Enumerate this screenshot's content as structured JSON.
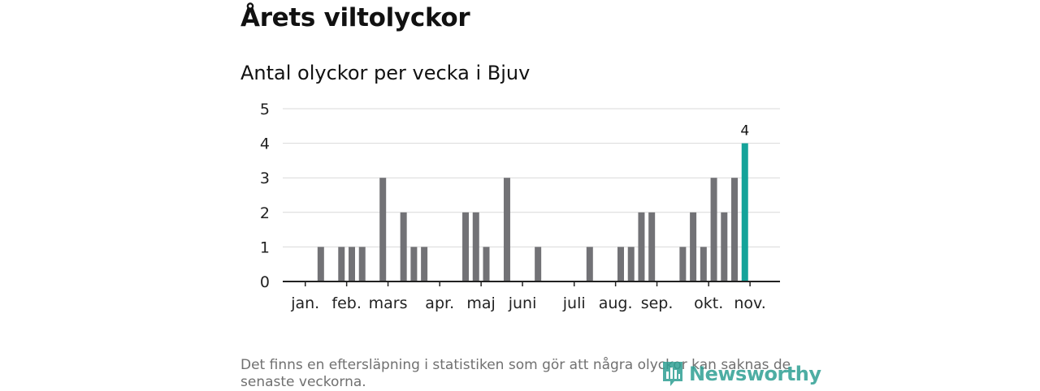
{
  "header": {
    "title": "Årets viltolyckor",
    "subtitle": "Antal olyckor per vecka i Bjuv"
  },
  "chart_data": {
    "type": "bar",
    "title": "",
    "xlabel": "",
    "ylabel": "",
    "ylim": [
      0,
      5
    ],
    "yticks": [
      0,
      1,
      2,
      3,
      4,
      5
    ],
    "grid": true,
    "weeks": [
      1,
      2,
      3,
      4,
      5,
      6,
      7,
      8,
      9,
      10,
      11,
      12,
      13,
      14,
      15,
      16,
      17,
      18,
      19,
      20,
      21,
      22,
      23,
      24,
      25,
      26,
      27,
      28,
      29,
      30,
      31,
      32,
      33,
      34,
      35,
      36,
      37,
      38,
      39,
      40,
      41,
      42,
      43,
      44,
      45,
      46,
      47,
      48
    ],
    "values": [
      0,
      0,
      0,
      1,
      0,
      1,
      1,
      1,
      0,
      3,
      0,
      2,
      1,
      1,
      0,
      0,
      0,
      2,
      2,
      1,
      0,
      3,
      0,
      0,
      1,
      0,
      0,
      0,
      0,
      1,
      0,
      0,
      1,
      1,
      2,
      2,
      0,
      0,
      1,
      2,
      1,
      3,
      2,
      3,
      4,
      0,
      0,
      0
    ],
    "month_labels": [
      {
        "label": "jan.",
        "week": 2.5
      },
      {
        "label": "feb.",
        "week": 6.5
      },
      {
        "label": "mars",
        "week": 10.5
      },
      {
        "label": "apr.",
        "week": 15.5
      },
      {
        "label": "maj",
        "week": 19.5
      },
      {
        "label": "juni",
        "week": 23.5
      },
      {
        "label": "juli",
        "week": 28.5
      },
      {
        "label": "aug.",
        "week": 32.5
      },
      {
        "label": "sep.",
        "week": 36.5
      },
      {
        "label": "okt.",
        "week": 41.5
      },
      {
        "label": "nov.",
        "week": 45.5
      }
    ],
    "highlight_index": 44,
    "highlight_label": "4",
    "colors": {
      "bar": "#727276",
      "highlight": "#14a39a",
      "grid": "#d9d9d9",
      "axis": "#222222"
    }
  },
  "footer": {
    "note": "Det finns en eftersläpning i statistiken som gör att några olyckor kan saknas de senaste veckorna.",
    "logo_text": "Newsworthy",
    "logo_icon": "bar-chart-icon",
    "logo_color": "#2f9f93"
  }
}
